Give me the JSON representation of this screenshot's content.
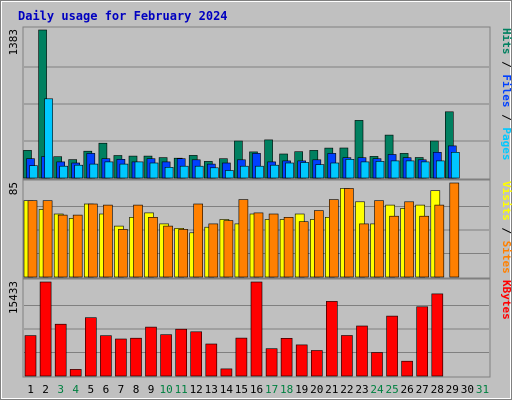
{
  "chart_data": {
    "type": "bar",
    "title": "Daily usage for February 2024",
    "x": [
      "1",
      "2",
      "3",
      "4",
      "5",
      "6",
      "7",
      "8",
      "9",
      "10",
      "11",
      "12",
      "13",
      "14",
      "15",
      "16",
      "17",
      "18",
      "19",
      "20",
      "21",
      "22",
      "23",
      "24",
      "25",
      "26",
      "27",
      "28",
      "29",
      "30",
      "31"
    ],
    "weekend_days": [
      "3",
      "4",
      "10",
      "11",
      "17",
      "18",
      "24",
      "25",
      "31"
    ],
    "panels": [
      {
        "id": "hits",
        "ymax_label": "1383",
        "ymax": 1383,
        "right_labels": [
          {
            "text": "Pages",
            "color": "#00c8ff"
          },
          {
            "text": " / ",
            "color": "#000000"
          },
          {
            "text": "Files",
            "color": "#0040ff"
          },
          {
            "text": " / ",
            "color": "#000000"
          },
          {
            "text": "Hits",
            "color": "#008060"
          }
        ],
        "series": [
          {
            "name": "Hits",
            "color": "#008060",
            "values": [
              258,
              1383,
              199,
              172,
              250,
              325,
              210,
              205,
              205,
              191,
              185,
              211,
              155,
              180,
              346,
              244,
              356,
              224,
              246,
              258,
              279,
              280,
              538,
              202,
              401,
              230,
              192,
              346,
              619,
              0,
              0
            ]
          },
          {
            "name": "Files",
            "color": "#0040ff",
            "values": [
              180,
              200,
              150,
              140,
              230,
              180,
              175,
              150,
              180,
              150,
              180,
              170,
              130,
              140,
              170,
              230,
              150,
              160,
              160,
              170,
              230,
              190,
              190,
              180,
              220,
              190,
              170,
              240,
              300,
              0,
              0
            ]
          },
          {
            "name": "Pages",
            "color": "#00c8ff",
            "values": [
              115,
              740,
              110,
              120,
              130,
              150,
              130,
              150,
              140,
              100,
              110,
              110,
              95,
              70,
              110,
              110,
              120,
              140,
              145,
              125,
              140,
              175,
              150,
              155,
              160,
              160,
              150,
              160,
              240,
              0,
              0
            ]
          }
        ]
      },
      {
        "id": "visits",
        "ymax_label": "85",
        "ymax": 85,
        "right_labels": [
          {
            "text": "Sites",
            "color": "#ff8000"
          },
          {
            "text": " / ",
            "color": "#000000"
          },
          {
            "text": "Visits",
            "color": "#ffff00"
          }
        ],
        "series": [
          {
            "name": "Visits",
            "color": "#ffff00",
            "values": [
              69,
              61,
              57,
              53,
              66,
              57,
              46,
              54,
              58,
              48,
              44,
              40,
              45,
              52,
              48,
              57,
              52,
              52,
              57,
              52,
              54,
              80,
              68,
              48,
              65,
              62,
              65,
              78,
              0,
              0,
              0
            ]
          },
          {
            "name": "Sites",
            "color": "#ff8000",
            "values": [
              69,
              69,
              56,
              56,
              66,
              65,
              43,
              65,
              54,
              46,
              43,
              66,
              48,
              51,
              70,
              58,
              57,
              54,
              50,
              60,
              70,
              80,
              48,
              69,
              55,
              68,
              55,
              65,
              85,
              0,
              0
            ]
          }
        ]
      },
      {
        "id": "kbytes",
        "ymax_label": "15433",
        "ymax": 15433,
        "right_labels": [
          {
            "text": "KBytes",
            "color": "#ff0000"
          }
        ],
        "series": [
          {
            "name": "KBytes",
            "color": "#ff0000",
            "values": [
              6640,
              15433,
              8505,
              1088,
              9574,
              6622,
              6070,
              6210,
              8030,
              6787,
              7685,
              7253,
              5259,
              1166,
              6218,
              15433,
              4480,
              6182,
              5105,
              4190,
              12254,
              6646,
              8209,
              3860,
              9835,
              2428,
              11358,
              13485,
              0,
              0,
              0
            ]
          }
        ]
      }
    ]
  }
}
